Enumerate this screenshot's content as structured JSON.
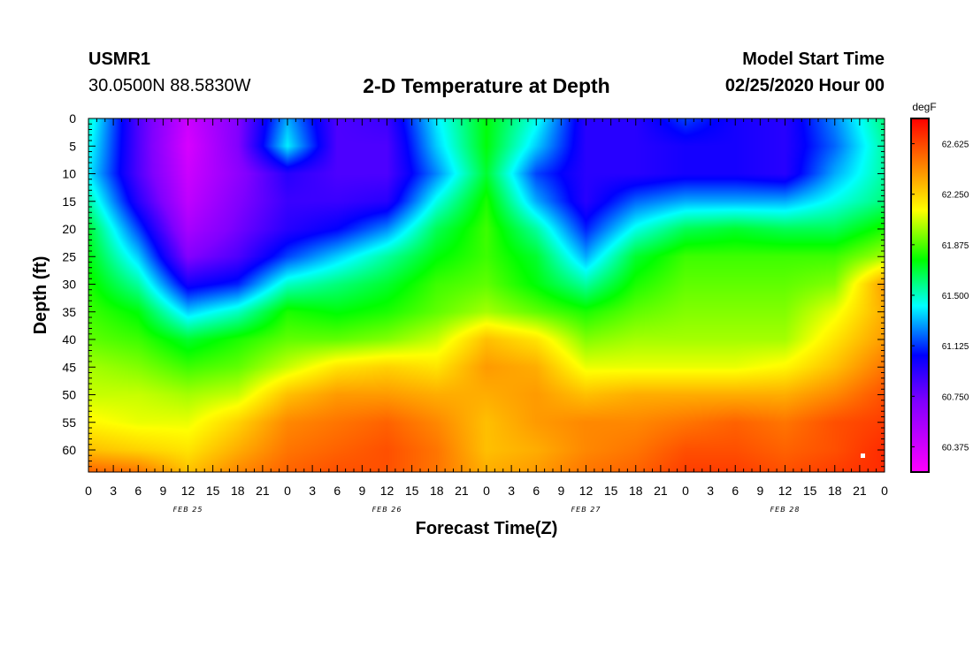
{
  "header": {
    "station": "USMR1",
    "coordinates": "30.0500N 88.5830W",
    "title": "2-D Temperature at Depth",
    "model_start_label": "Model Start Time",
    "model_start_value": "02/25/2020 Hour 00"
  },
  "chart_data": {
    "type": "heatmap",
    "title": "2-D Temperature at Depth",
    "xlabel": "Forecast Time(Z)",
    "ylabel": "Depth (ft)",
    "x_range_hours": [
      0,
      96
    ],
    "y_range_ft": [
      0,
      64
    ],
    "y_inverted": true,
    "x_ticks": [
      "0",
      "3",
      "6",
      "9",
      "12",
      "15",
      "18",
      "21",
      "0",
      "3",
      "6",
      "9",
      "12",
      "15",
      "18",
      "21",
      "0",
      "3",
      "6",
      "9",
      "12",
      "15",
      "18",
      "21",
      "0",
      "3",
      "6",
      "9",
      "12",
      "15",
      "18",
      "21",
      "0"
    ],
    "x_tick_hours": [
      0,
      3,
      6,
      9,
      12,
      15,
      18,
      21,
      24,
      27,
      30,
      33,
      36,
      39,
      42,
      45,
      48,
      51,
      54,
      57,
      60,
      63,
      66,
      69,
      72,
      75,
      78,
      81,
      84,
      87,
      90,
      93,
      96
    ],
    "date_labels": [
      {
        "label": "FEB 25",
        "hour": 12
      },
      {
        "label": "FEB 26",
        "hour": 36
      },
      {
        "label": "FEB 27",
        "hour": 60
      },
      {
        "label": "FEB 28",
        "hour": 84
      }
    ],
    "y_ticks": [
      "0",
      "5",
      "10",
      "15",
      "20",
      "25",
      "30",
      "35",
      "40",
      "45",
      "50",
      "55",
      "60"
    ],
    "y_tick_values": [
      0,
      5,
      10,
      15,
      20,
      25,
      30,
      35,
      40,
      45,
      50,
      55,
      60
    ],
    "colorbar": {
      "unit": "degF",
      "min": 60.1875,
      "max": 62.8125,
      "labels": [
        "62.625",
        "62.250",
        "61.875",
        "61.500",
        "61.125",
        "60.750",
        "60.375"
      ],
      "label_values": [
        62.625,
        62.25,
        61.875,
        61.5,
        61.125,
        60.75,
        60.375
      ]
    },
    "grid_hours": [
      0,
      6,
      12,
      18,
      24,
      30,
      36,
      42,
      48,
      54,
      60,
      66,
      72,
      78,
      84,
      90,
      96
    ],
    "grid_depths": [
      0,
      5,
      10,
      15,
      20,
      25,
      30,
      35,
      40,
      45,
      50,
      55,
      60,
      64
    ],
    "temperature_degF": [
      [
        61.5,
        60.85,
        60.4,
        60.7,
        61.3,
        60.85,
        60.9,
        61.4,
        61.75,
        61.45,
        60.95,
        60.95,
        61.15,
        61.0,
        60.95,
        61.25,
        61.6
      ],
      [
        61.45,
        60.85,
        60.35,
        60.7,
        61.4,
        60.85,
        60.85,
        61.35,
        61.75,
        61.35,
        60.95,
        60.95,
        61.0,
        61.0,
        60.95,
        61.2,
        61.55
      ],
      [
        61.4,
        60.85,
        60.4,
        60.65,
        60.95,
        60.85,
        60.85,
        61.25,
        61.7,
        61.15,
        60.95,
        60.95,
        61.0,
        61.0,
        60.95,
        61.3,
        61.55
      ],
      [
        61.55,
        60.95,
        60.45,
        60.7,
        60.9,
        60.9,
        60.95,
        61.45,
        61.8,
        61.3,
        60.95,
        61.2,
        61.3,
        61.3,
        61.3,
        61.45,
        61.6
      ],
      [
        61.7,
        61.15,
        60.55,
        60.75,
        60.95,
        61.05,
        61.25,
        61.65,
        61.85,
        61.55,
        61.1,
        61.45,
        61.65,
        61.7,
        61.65,
        61.65,
        61.8
      ],
      [
        61.75,
        61.35,
        60.7,
        60.85,
        61.15,
        61.35,
        61.55,
        61.75,
        61.85,
        61.7,
        61.3,
        61.7,
        61.85,
        61.85,
        61.85,
        61.85,
        62.0
      ],
      [
        61.8,
        61.55,
        61.0,
        61.1,
        61.5,
        61.6,
        61.7,
        61.85,
        61.9,
        61.75,
        61.55,
        61.8,
        61.9,
        61.9,
        61.9,
        61.95,
        62.4
      ],
      [
        61.85,
        61.75,
        61.35,
        61.5,
        61.8,
        61.75,
        61.8,
        61.9,
        62.0,
        61.9,
        61.8,
        61.9,
        61.95,
        61.95,
        61.95,
        62.1,
        62.35
      ],
      [
        61.9,
        61.85,
        61.7,
        61.8,
        61.9,
        61.9,
        61.95,
        62.05,
        62.3,
        62.2,
        61.95,
        62.0,
        62.0,
        62.0,
        62.0,
        62.2,
        62.4
      ],
      [
        62.0,
        61.95,
        61.85,
        61.9,
        62.05,
        62.2,
        62.25,
        62.2,
        62.4,
        62.35,
        62.1,
        62.1,
        62.1,
        62.1,
        62.15,
        62.3,
        62.5
      ],
      [
        62.05,
        62.05,
        62.0,
        62.05,
        62.3,
        62.4,
        62.4,
        62.35,
        62.35,
        62.4,
        62.3,
        62.35,
        62.35,
        62.35,
        62.35,
        62.45,
        62.6
      ],
      [
        62.15,
        62.1,
        62.1,
        62.25,
        62.45,
        62.5,
        62.55,
        62.45,
        62.3,
        62.4,
        62.45,
        62.45,
        62.5,
        62.55,
        62.5,
        62.6,
        62.65
      ],
      [
        62.3,
        62.25,
        62.2,
        62.35,
        62.5,
        62.55,
        62.6,
        62.5,
        62.3,
        62.35,
        62.45,
        62.5,
        62.6,
        62.6,
        62.55,
        62.6,
        62.7
      ],
      [
        62.55,
        62.5,
        62.3,
        62.45,
        62.55,
        62.6,
        62.6,
        62.5,
        62.35,
        62.4,
        62.5,
        62.55,
        62.65,
        62.65,
        62.6,
        62.65,
        62.7
      ]
    ]
  }
}
